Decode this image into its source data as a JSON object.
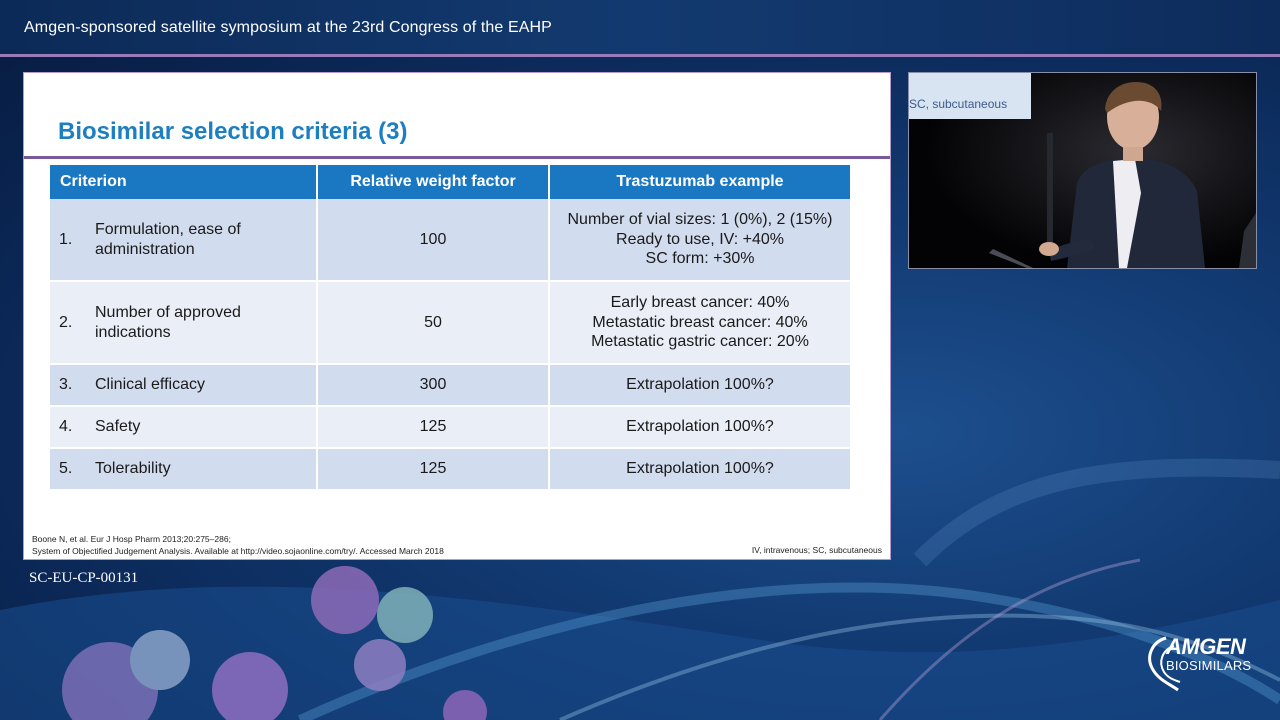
{
  "header": {
    "title": "Amgen-sponsored satellite symposium at the 23rd Congress of the EAHP"
  },
  "slide": {
    "title": "Biosimilar selection criteria (3)",
    "table": {
      "headers": [
        "Criterion",
        "Relative weight factor",
        "Trastuzumab example"
      ],
      "rows": [
        {
          "num": "1.",
          "criterion": "Formulation, ease of administration",
          "weight": "100",
          "example": [
            "Number of vial sizes: 1 (0%), 2 (15%)",
            "Ready to use, IV: +40%",
            "SC form: +30%"
          ]
        },
        {
          "num": "2.",
          "criterion": "Number of approved indications",
          "weight": "50",
          "example": [
            "Early breast cancer: 40%",
            "Metastatic breast cancer: 40%",
            "Metastatic gastric cancer: 20%"
          ]
        },
        {
          "num": "3.",
          "criterion": "Clinical efficacy",
          "weight": "300",
          "example": [
            "Extrapolation 100%?"
          ]
        },
        {
          "num": "4.",
          "criterion": "Safety",
          "weight": "125",
          "example": [
            "Extrapolation 100%?"
          ]
        },
        {
          "num": "5.",
          "criterion": "Tolerability",
          "weight": "125",
          "example": [
            "Extrapolation 100%?"
          ]
        }
      ]
    },
    "references": [
      "Boone N, et al. Eur J Hosp Pharm 2013;20:275–286;",
      "System of Objectified Judgement Analysis. Available at http://video.sojaonline.com/try/. Accessed March 2018"
    ],
    "abbreviations": "IV, intravenous;  SC, subcutaneous"
  },
  "document_code": "SC-EU-CP-00131",
  "video": {
    "caption": "SC, subcutaneous"
  },
  "logo": {
    "line1": "AMGEN",
    "line2": "BIOSIMILARS"
  },
  "colors": {
    "title_blue": "#1d7fc1",
    "header_blue": "#1a78c2",
    "row_dark": "#d2dcef",
    "row_light": "#e9eef7",
    "accent_purple": "#7a5a9a"
  }
}
